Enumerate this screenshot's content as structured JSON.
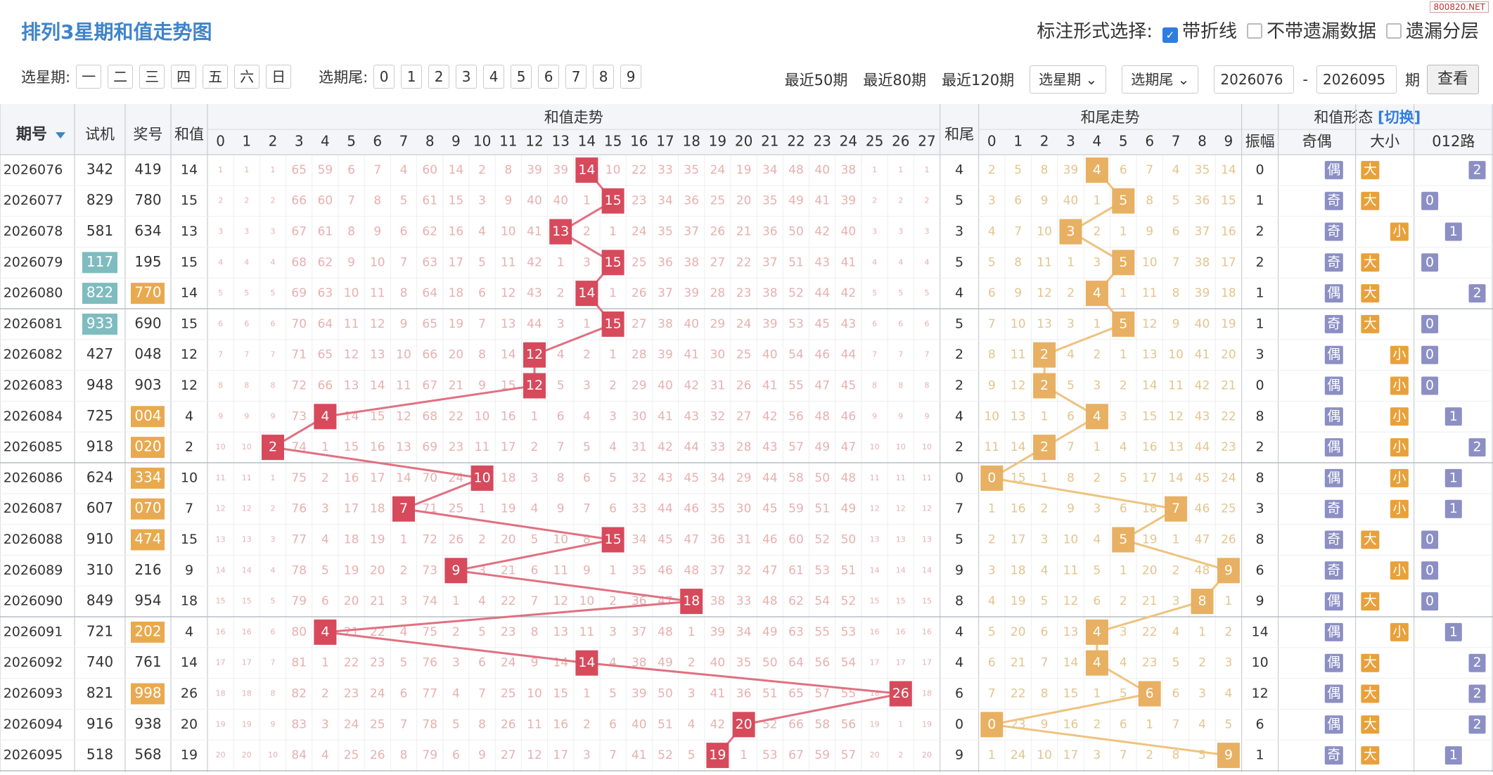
{
  "header": {
    "title": "排列3星期和值走势图",
    "mark_label": "标注形式选择:",
    "opt_line": "带折线",
    "opt_nomiss": "不带遗漏数据",
    "opt_layer": "遗漏分层",
    "watermark": "800820.NET"
  },
  "filters": {
    "week_label": "选星期:",
    "weekdays": [
      "一",
      "二",
      "三",
      "四",
      "五",
      "六",
      "日"
    ],
    "tail_label": "选期尾:",
    "tails": [
      "0",
      "1",
      "2",
      "3",
      "4",
      "5",
      "6",
      "7",
      "8",
      "9"
    ],
    "recent": [
      "最近50期",
      "最近80期",
      "最近120期"
    ],
    "week_select": "选星期",
    "tail_select": "选期尾",
    "from": "2026076",
    "dash": "-",
    "to": "2026095",
    "qi": "期",
    "view": "查看"
  },
  "chart_data": {
    "type": "table",
    "header_groups": {
      "issue": "期号",
      "test": "试机",
      "prize": "奖号",
      "sum": "和值",
      "sum_trend": "和值走势",
      "sum_tail": "和尾",
      "tail_trend": "和尾走势",
      "shape": "和值形态",
      "switch": "[切换]",
      "amp": "振幅",
      "oddeven": "奇偶",
      "bigsmall": "大小",
      "route": "012路"
    },
    "rows": [
      {
        "issue": "2026076",
        "test": "342",
        "prize": "419",
        "sum": 14,
        "tail": 4,
        "amp": "0",
        "oe": "偶",
        "bs": "大",
        "route": "2",
        "test_hl": false,
        "prize_hl": false
      },
      {
        "issue": "2026077",
        "test": "829",
        "prize": "780",
        "sum": 15,
        "tail": 5,
        "amp": "1",
        "oe": "奇",
        "bs": "大",
        "route": "0",
        "test_hl": false,
        "prize_hl": false
      },
      {
        "issue": "2026078",
        "test": "581",
        "prize": "634",
        "sum": 13,
        "tail": 3,
        "amp": "2",
        "oe": "奇",
        "bs": "小",
        "route": "1",
        "test_hl": false,
        "prize_hl": false
      },
      {
        "issue": "2026079",
        "test": "117",
        "prize": "195",
        "sum": 15,
        "tail": 5,
        "amp": "2",
        "oe": "奇",
        "bs": "大",
        "route": "0",
        "test_hl": true,
        "prize_hl": false
      },
      {
        "issue": "2026080",
        "test": "822",
        "prize": "770",
        "sum": 14,
        "tail": 4,
        "amp": "1",
        "oe": "偶",
        "bs": "大",
        "route": "2",
        "test_hl": true,
        "prize_hl": true
      },
      {
        "issue": "2026081",
        "test": "933",
        "prize": "690",
        "sum": 15,
        "tail": 5,
        "amp": "1",
        "oe": "奇",
        "bs": "大",
        "route": "0",
        "test_hl": true,
        "prize_hl": false
      },
      {
        "issue": "2026082",
        "test": "427",
        "prize": "048",
        "sum": 12,
        "tail": 2,
        "amp": "3",
        "oe": "偶",
        "bs": "小",
        "route": "0",
        "test_hl": false,
        "prize_hl": false
      },
      {
        "issue": "2026083",
        "test": "948",
        "prize": "903",
        "sum": 12,
        "tail": 2,
        "amp": "0",
        "oe": "偶",
        "bs": "小",
        "route": "0",
        "test_hl": false,
        "prize_hl": false
      },
      {
        "issue": "2026084",
        "test": "725",
        "prize": "004",
        "sum": 4,
        "tail": 4,
        "amp": "8",
        "oe": "偶",
        "bs": "小",
        "route": "1",
        "test_hl": false,
        "prize_hl": true
      },
      {
        "issue": "2026085",
        "test": "918",
        "prize": "020",
        "sum": 2,
        "tail": 2,
        "amp": "2",
        "oe": "偶",
        "bs": "小",
        "route": "2",
        "test_hl": false,
        "prize_hl": true
      },
      {
        "issue": "2026086",
        "test": "624",
        "prize": "334",
        "sum": 10,
        "tail": 0,
        "amp": "8",
        "oe": "偶",
        "bs": "小",
        "route": "1",
        "test_hl": false,
        "prize_hl": true
      },
      {
        "issue": "2026087",
        "test": "607",
        "prize": "070",
        "sum": 7,
        "tail": 7,
        "amp": "3",
        "oe": "奇",
        "bs": "小",
        "route": "1",
        "test_hl": false,
        "prize_hl": true
      },
      {
        "issue": "2026088",
        "test": "910",
        "prize": "474",
        "sum": 15,
        "tail": 5,
        "amp": "8",
        "oe": "奇",
        "bs": "大",
        "route": "0",
        "test_hl": false,
        "prize_hl": true
      },
      {
        "issue": "2026089",
        "test": "310",
        "prize": "216",
        "sum": 9,
        "tail": 9,
        "amp": "6",
        "oe": "奇",
        "bs": "小",
        "route": "0",
        "test_hl": false,
        "prize_hl": false
      },
      {
        "issue": "2026090",
        "test": "849",
        "prize": "954",
        "sum": 18,
        "tail": 8,
        "amp": "9",
        "oe": "偶",
        "bs": "大",
        "route": "0",
        "test_hl": false,
        "prize_hl": false
      },
      {
        "issue": "2026091",
        "test": "721",
        "prize": "202",
        "sum": 4,
        "tail": 4,
        "amp": "14",
        "oe": "偶",
        "bs": "小",
        "route": "1",
        "test_hl": false,
        "prize_hl": true
      },
      {
        "issue": "2026092",
        "test": "740",
        "prize": "761",
        "sum": 14,
        "tail": 4,
        "amp": "10",
        "oe": "偶",
        "bs": "大",
        "route": "2",
        "test_hl": false,
        "prize_hl": false
      },
      {
        "issue": "2026093",
        "test": "821",
        "prize": "998",
        "sum": 26,
        "tail": 6,
        "amp": "12",
        "oe": "偶",
        "bs": "大",
        "route": "2",
        "test_hl": false,
        "prize_hl": true
      },
      {
        "issue": "2026094",
        "test": "916",
        "prize": "938",
        "sum": 20,
        "tail": 0,
        "amp": "6",
        "oe": "偶",
        "bs": "大",
        "route": "2",
        "test_hl": false,
        "prize_hl": false
      },
      {
        "issue": "2026095",
        "test": "518",
        "prize": "568",
        "sum": 19,
        "tail": 9,
        "amp": "1",
        "oe": "奇",
        "bs": "大",
        "route": "1",
        "test_hl": false,
        "prize_hl": false
      }
    ],
    "sum_range": [
      0,
      27
    ],
    "tail_range": [
      0,
      9
    ]
  },
  "colors": {
    "sum_ball": "#d64a5c",
    "tail_ball": "#e8b062",
    "sum_line": "#e07080",
    "tail_line": "#efc27f",
    "test_hl": "#7fbcc0",
    "prize_hl": "#e9a94f",
    "odd_even": "#8b8fc4",
    "big": "#e8a13a",
    "small": "#e8a13a",
    "route": "#8b8fc4",
    "miss_text": "#e7b0b0",
    "title": "#3f84c9"
  }
}
